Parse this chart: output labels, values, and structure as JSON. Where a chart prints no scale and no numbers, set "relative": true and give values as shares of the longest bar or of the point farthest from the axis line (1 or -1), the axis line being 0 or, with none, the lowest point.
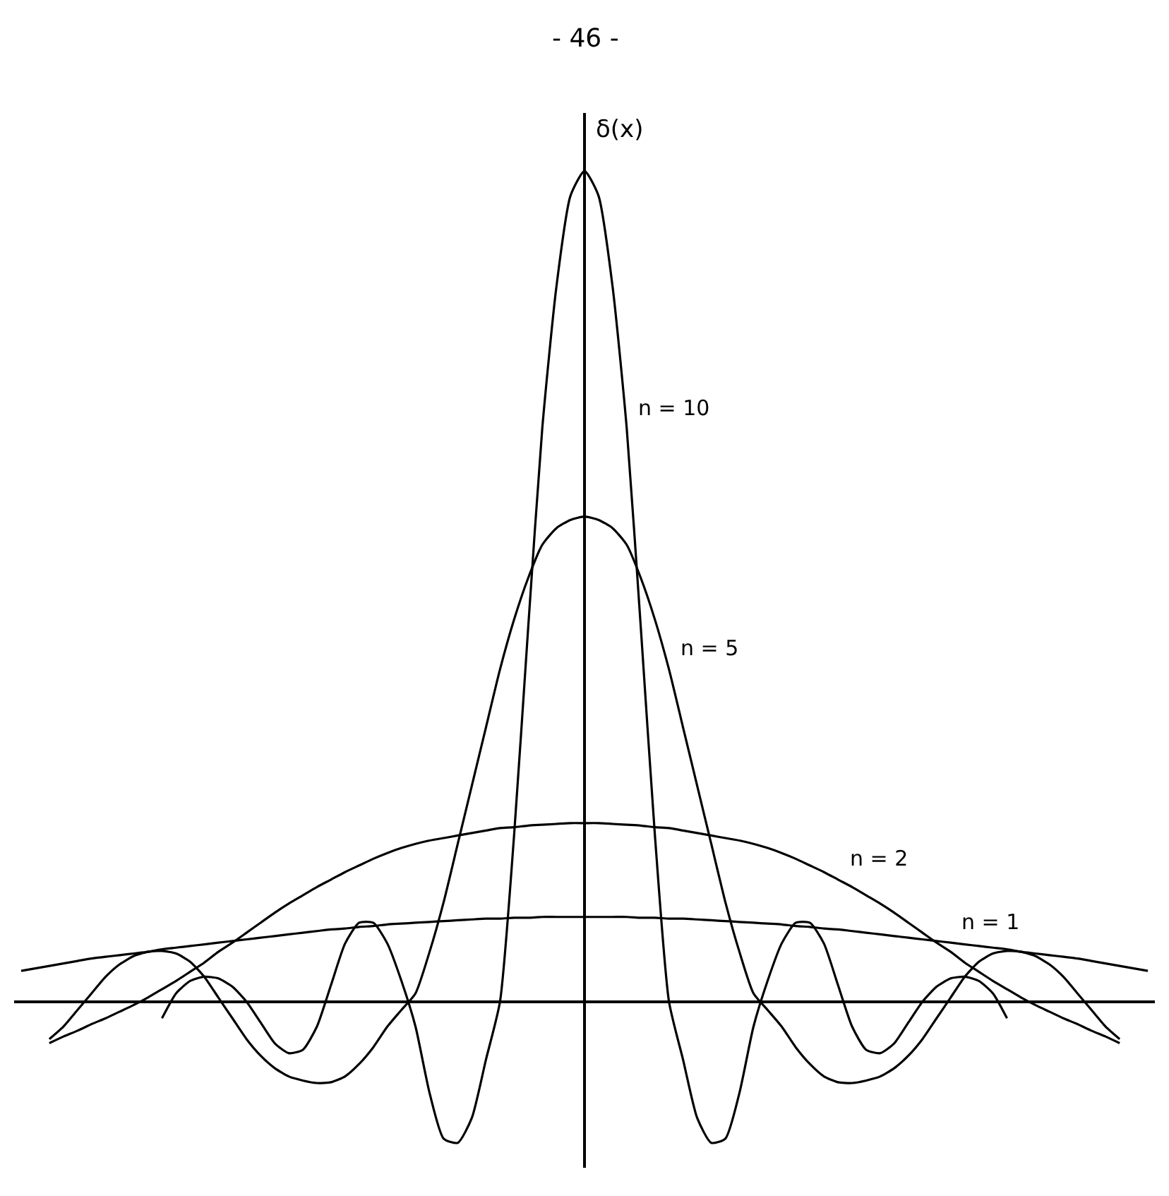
{
  "chart_data": {
    "type": "line",
    "ylabel": "δ(x)",
    "relative": true,
    "legend": false,
    "marker": "none",
    "line_style": "solid",
    "annotations": [
      "- 46 -"
    ],
    "categories": [
      null,
      null,
      null,
      null,
      null,
      null,
      null,
      null,
      null,
      null,
      null,
      null,
      null,
      null,
      null,
      null,
      null,
      null,
      null,
      null,
      null,
      null,
      null,
      null,
      null,
      null,
      null,
      null,
      null,
      null,
      null,
      null,
      null,
      null,
      null,
      null,
      null,
      null,
      null,
      null,
      null,
      null,
      null,
      null,
      null,
      null,
      null,
      null,
      null,
      null,
      null,
      null,
      null,
      null,
      null,
      null,
      null,
      null,
      null,
      null,
      null,
      null,
      null,
      null,
      null,
      null,
      null,
      null,
      null,
      null,
      null,
      null,
      null,
      null,
      null,
      null,
      null,
      null,
      null,
      null,
      null
    ],
    "series": [
      {
        "name": "n = 10",
        "color": "#000000",
        "values": [
          null,
          null,
          null,
          null,
          null,
          null,
          null,
          null,
          null,
          null,
          -0.02,
          0.01,
          0.025,
          0.03,
          0.028,
          0.018,
          0.0,
          -0.025,
          -0.05,
          -0.062,
          -0.058,
          -0.03,
          0.02,
          0.07,
          0.095,
          0.095,
          0.07,
          0.025,
          -0.03,
          -0.11,
          -0.165,
          -0.17,
          -0.14,
          -0.07,
          0.0,
          0.2,
          0.45,
          0.69,
          0.86,
          0.97,
          1.0,
          0.97,
          0.86,
          0.69,
          0.45,
          0.2,
          0.0,
          -0.07,
          -0.14,
          -0.17,
          -0.165,
          -0.11,
          -0.03,
          0.025,
          0.07,
          0.095,
          0.095,
          0.07,
          0.02,
          -0.03,
          -0.058,
          -0.062,
          -0.05,
          -0.025,
          0.0,
          0.018,
          0.028,
          0.03,
          0.025,
          0.01,
          -0.02,
          null,
          null,
          null,
          null,
          null,
          null,
          null,
          null,
          null,
          null
        ]
      },
      {
        "name": "n = 5",
        "color": "#000000",
        "values": [
          null,
          null,
          -0.045,
          -0.03,
          -0.01,
          0.01,
          0.03,
          0.045,
          0.055,
          0.06,
          0.061,
          0.058,
          0.048,
          0.03,
          0.005,
          -0.02,
          -0.045,
          -0.065,
          -0.08,
          -0.09,
          -0.095,
          -0.098,
          -0.097,
          -0.09,
          -0.075,
          -0.055,
          -0.03,
          -0.01,
          0.01,
          0.06,
          0.12,
          0.19,
          0.26,
          0.33,
          0.4,
          0.46,
          0.51,
          0.55,
          0.57,
          0.58,
          0.584,
          0.58,
          0.57,
          0.55,
          0.51,
          0.46,
          0.4,
          0.33,
          0.26,
          0.19,
          0.12,
          0.06,
          0.01,
          -0.01,
          -0.03,
          -0.055,
          -0.075,
          -0.09,
          -0.097,
          -0.098,
          -0.095,
          -0.09,
          -0.08,
          -0.065,
          -0.045,
          -0.02,
          0.005,
          0.03,
          0.048,
          0.058,
          0.061,
          0.06,
          0.055,
          0.045,
          0.03,
          0.01,
          -0.01,
          -0.03,
          -0.045,
          null,
          null
        ]
      },
      {
        "name": "n = 2",
        "color": "#000000",
        "values": [
          null,
          null,
          -0.05,
          -0.042,
          -0.035,
          -0.027,
          -0.02,
          -0.012,
          -0.004,
          0.005,
          0.015,
          0.025,
          0.036,
          0.047,
          0.06,
          0.071,
          0.083,
          0.095,
          0.107,
          0.118,
          0.128,
          0.138,
          0.147,
          0.156,
          0.164,
          0.172,
          0.179,
          0.185,
          0.19,
          0.194,
          0.197,
          0.2,
          0.203,
          0.206,
          0.209,
          0.21,
          0.212,
          0.213,
          0.214,
          0.215,
          0.215,
          0.215,
          0.214,
          0.213,
          0.212,
          0.21,
          0.209,
          0.206,
          0.203,
          0.2,
          0.197,
          0.194,
          0.19,
          0.185,
          0.179,
          0.172,
          0.164,
          0.156,
          0.147,
          0.138,
          0.128,
          0.118,
          0.107,
          0.095,
          0.083,
          0.071,
          0.06,
          0.047,
          0.036,
          0.025,
          0.015,
          0.005,
          -0.004,
          -0.012,
          -0.02,
          -0.027,
          -0.035,
          -0.042,
          -0.05,
          null,
          null
        ]
      },
      {
        "name": "n = 1",
        "color": "#000000",
        "values": [
          0.037,
          0.04,
          0.043,
          0.046,
          0.049,
          0.052,
          0.054,
          0.056,
          0.058,
          0.06,
          0.063,
          0.065,
          0.067,
          0.069,
          0.071,
          0.073,
          0.075,
          0.077,
          0.079,
          0.081,
          0.083,
          0.085,
          0.087,
          0.088,
          0.09,
          0.091,
          0.093,
          0.094,
          0.095,
          0.096,
          0.097,
          0.098,
          0.099,
          0.1,
          0.1,
          0.101,
          0.101,
          0.102,
          0.102,
          0.102,
          0.102,
          0.102,
          0.102,
          0.102,
          0.101,
          0.101,
          0.1,
          0.1,
          0.099,
          0.098,
          0.097,
          0.096,
          0.095,
          0.094,
          0.093,
          0.091,
          0.09,
          0.088,
          0.087,
          0.085,
          0.083,
          0.081,
          0.079,
          0.077,
          0.075,
          0.073,
          0.071,
          0.069,
          0.067,
          0.065,
          0.063,
          0.06,
          0.058,
          0.056,
          0.054,
          0.052,
          0.049,
          0.046,
          0.043,
          0.04,
          0.037
        ]
      }
    ]
  }
}
